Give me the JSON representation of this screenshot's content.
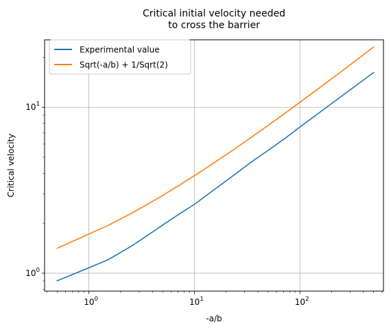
{
  "chart_data": {
    "type": "line",
    "title": "Critical initial velocity needed\nto cross the barrier",
    "xlabel": "-a/b",
    "ylabel": "Critical velocity",
    "xscale": "log",
    "yscale": "log",
    "xlim": [
      0.38,
      620
    ],
    "ylim": [
      0.78,
      25.5
    ],
    "x_major_ticks": [
      {
        "value": 1,
        "exp": "0"
      },
      {
        "value": 10,
        "exp": "1"
      },
      {
        "value": 100,
        "exp": "2"
      }
    ],
    "y_major_ticks": [
      {
        "value": 1,
        "exp": "0"
      },
      {
        "value": 10,
        "exp": "1"
      }
    ],
    "grid": true,
    "legend_position": "top-left",
    "series": [
      {
        "name": "Experimental value",
        "color": "#1f77b4",
        "x": [
          0.5,
          1.5,
          2.5,
          3.5,
          5,
          7,
          10,
          15,
          25,
          35,
          50,
          70,
          100,
          150,
          250,
          350,
          500
        ],
        "y": [
          0.9,
          1.2,
          1.45,
          1.67,
          1.95,
          2.25,
          2.6,
          3.15,
          4.0,
          4.7,
          5.5,
          6.4,
          7.6,
          9.2,
          11.7,
          13.7,
          16.2
        ]
      },
      {
        "name": "Sqrt(-a/b) + 1/Sqrt(2)",
        "color": "#ff7f0e",
        "x": [
          0.5,
          1.5,
          2.5,
          3.5,
          5,
          7,
          10,
          15,
          25,
          35,
          50,
          70,
          100,
          150,
          250,
          350,
          500
        ],
        "y": [
          1.414,
          1.932,
          2.288,
          2.578,
          2.943,
          3.353,
          3.869,
          4.58,
          5.707,
          6.623,
          7.778,
          9.074,
          10.707,
          12.954,
          16.518,
          19.415,
          23.068
        ]
      }
    ]
  }
}
